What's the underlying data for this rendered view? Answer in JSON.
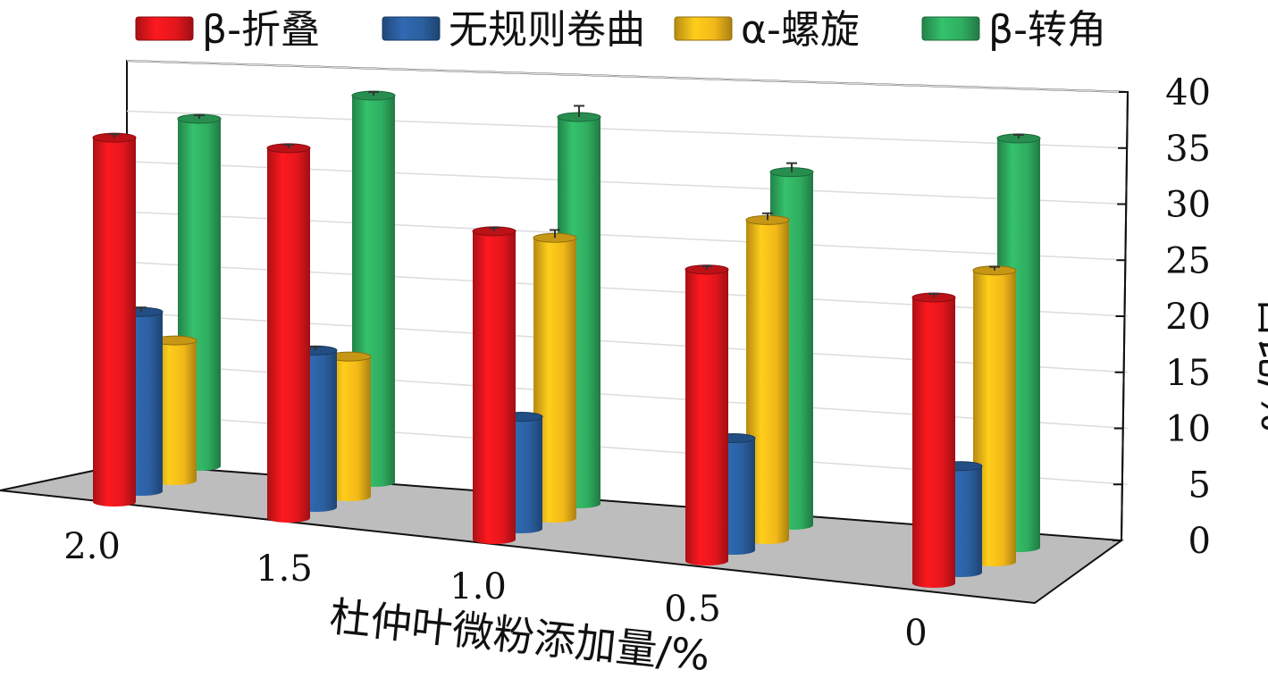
{
  "chart_data": {
    "type": "bar",
    "categories": [
      "2.0",
      "1.5",
      "1.0",
      "0.5",
      "0"
    ],
    "series": [
      {
        "name": "β-折叠",
        "color": "#e3161c",
        "values": [
          32.5,
          33.0,
          27.5,
          26.0,
          25.5
        ],
        "errors": [
          0.2,
          0.1,
          0.3,
          0.2,
          0.2
        ]
      },
      {
        "name": "无规则卷曲",
        "color": "#2b5fa0",
        "values": [
          16.0,
          14.0,
          10.0,
          10.0,
          9.5
        ],
        "errors": [
          0.4,
          0.2,
          0.0,
          0.0,
          0.0
        ]
      },
      {
        "name": "α-螺旋",
        "color": "#f2b818",
        "values": [
          12.5,
          12.5,
          25.0,
          28.5,
          26.0
        ],
        "errors": [
          0.0,
          0.0,
          0.7,
          0.6,
          0.1
        ]
      },
      {
        "name": "β-转角",
        "color": "#2fad60",
        "values": [
          31.0,
          34.5,
          34.5,
          31.5,
          36.5
        ],
        "errors": [
          0.2,
          0.1,
          1.0,
          0.8,
          0.3
        ]
      }
    ],
    "xlabel": "杜仲叶微粉添加量/%",
    "ylabel": "占比/%",
    "ylim": [
      0,
      40
    ],
    "yticks": [
      0,
      5,
      10,
      15,
      20,
      25,
      30,
      35,
      40
    ],
    "grid": true,
    "legend_position": "top"
  }
}
